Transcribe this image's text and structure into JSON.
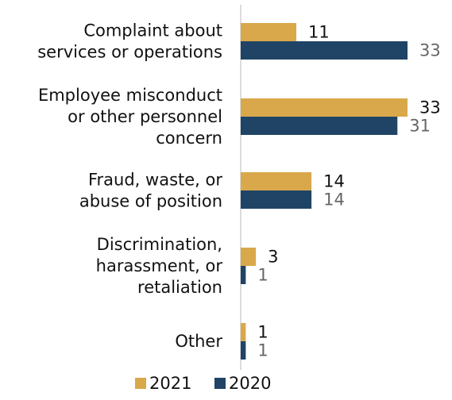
{
  "chart_data": {
    "type": "bar",
    "orientation": "horizontal",
    "categories": [
      [
        "Complaint about",
        "services or operations"
      ],
      [
        "Employee misconduct",
        "or other personnel",
        "concern"
      ],
      [
        "Fraud, waste, or",
        "abuse of position"
      ],
      [
        "Discrimination,",
        "harassment, or",
        "retaliation"
      ],
      [
        "Other"
      ]
    ],
    "series": [
      {
        "name": "2021",
        "values": [
          11,
          33,
          14,
          3,
          1
        ],
        "color": "#D9A84A",
        "label_color": "#111111"
      },
      {
        "name": "2020",
        "values": [
          33,
          31,
          14,
          1,
          1
        ],
        "color": "#1F4466",
        "label_color": "#666666"
      }
    ],
    "xlim": [
      0,
      33
    ],
    "grid": false,
    "legend_position": "bottom"
  }
}
